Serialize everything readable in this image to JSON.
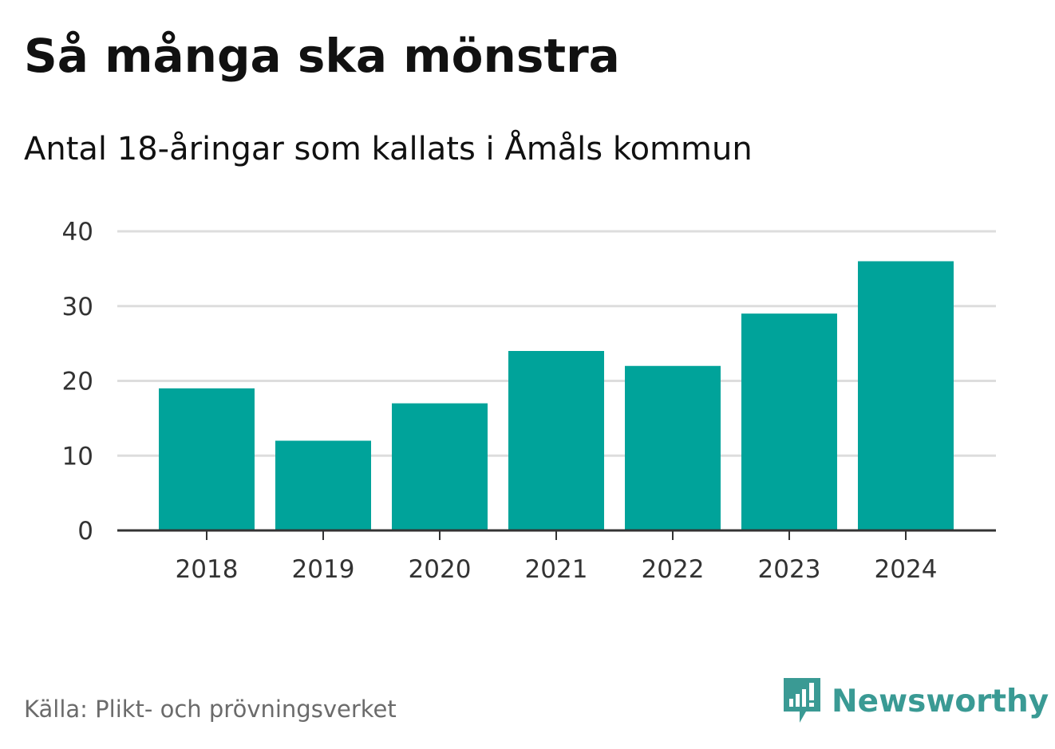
{
  "title": "Så många ska mönstra",
  "subtitle": "Antal 18-åringar som kallats i Åmåls kommun",
  "source": "Källa: Plikt- och prövningsverket",
  "brand": {
    "name": "Newsworthy",
    "icon": "newsworthy-logo-icon"
  },
  "colors": {
    "bar": "#00a39a",
    "grid": "#dddddd",
    "axis": "#333333",
    "brand": "#3a9a94"
  },
  "chart_data": {
    "type": "bar",
    "title": "Så många ska mönstra",
    "subtitle": "Antal 18-åringar som kallats i Åmåls kommun",
    "categories": [
      "2018",
      "2019",
      "2020",
      "2021",
      "2022",
      "2023",
      "2024"
    ],
    "values": [
      19,
      12,
      17,
      24,
      22,
      29,
      36
    ],
    "xlabel": "",
    "ylabel": "",
    "ylim": [
      0,
      40
    ],
    "yticks": [
      "0",
      "10",
      "20",
      "30",
      "40"
    ],
    "grid": true,
    "legend": "none"
  }
}
